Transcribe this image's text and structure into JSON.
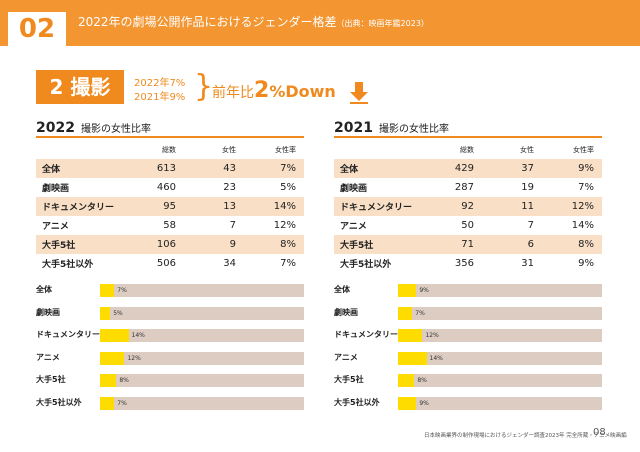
{
  "header": {
    "number": "02",
    "title": "2022年の劇場公開作品におけるジェンダー格差",
    "source": "（出典：映画年鑑2023）"
  },
  "summary": {
    "badge": "2 撮影",
    "year_line_2022": "2022年7%",
    "year_line_2021": "2021年9%",
    "brace": "}",
    "prefix": "前年比",
    "value": "2",
    "unit": "%",
    "direction": "Down"
  },
  "tables": [
    {
      "year": "2022",
      "subtitle": "撮影の女性比率",
      "columns": [
        "",
        "総数",
        "女性",
        "女性率"
      ],
      "rows": [
        {
          "label": "全体",
          "total": "613",
          "female": "43",
          "rate": "7%"
        },
        {
          "label": "劇映画",
          "total": "460",
          "female": "23",
          "rate": "5%"
        },
        {
          "label": "ドキュメンタリー",
          "total": "95",
          "female": "13",
          "rate": "14%"
        },
        {
          "label": "アニメ",
          "total": "58",
          "female": "7",
          "rate": "12%"
        },
        {
          "label": "大手5社",
          "total": "106",
          "female": "9",
          "rate": "8%"
        },
        {
          "label": "大手5社以外",
          "total": "506",
          "female": "34",
          "rate": "7%"
        }
      ]
    },
    {
      "year": "2021",
      "subtitle": "撮影の女性比率",
      "columns": [
        "",
        "総数",
        "女性",
        "女性率"
      ],
      "rows": [
        {
          "label": "全体",
          "total": "429",
          "female": "37",
          "rate": "9%"
        },
        {
          "label": "劇映画",
          "total": "287",
          "female": "19",
          "rate": "7%"
        },
        {
          "label": "ドキュメンタリー",
          "total": "92",
          "female": "11",
          "rate": "12%"
        },
        {
          "label": "アニメ",
          "total": "50",
          "female": "7",
          "rate": "14%"
        },
        {
          "label": "大手5社",
          "total": "71",
          "female": "6",
          "rate": "8%"
        },
        {
          "label": "大手5社以外",
          "total": "356",
          "female": "31",
          "rate": "9%"
        }
      ]
    }
  ],
  "chart_data": [
    {
      "type": "bar",
      "title": "",
      "categories": [
        "全体",
        "劇映画",
        "ドキュメンタリー",
        "アニメ",
        "大手5社",
        "大手5社以外"
      ],
      "values": [
        7,
        5,
        14,
        12,
        8,
        7
      ],
      "value_labels": [
        "7%",
        "5%",
        "14%",
        "12%",
        "8%",
        "7%"
      ],
      "ylim": [
        0,
        100
      ],
      "orientation": "horizontal"
    },
    {
      "type": "bar",
      "title": "",
      "categories": [
        "全体",
        "劇映画",
        "ドキュメンタリー",
        "アニメ",
        "大手5社",
        "大手5社以外"
      ],
      "values": [
        9,
        7,
        12,
        14,
        8,
        9
      ],
      "value_labels": [
        "9%",
        "7%",
        "12%",
        "14%",
        "8%",
        "9%"
      ],
      "ylim": [
        0,
        100
      ],
      "orientation": "horizontal"
    }
  ],
  "footer": {
    "text": "日本映画業界の制作現場におけるジェンダー調査2023年 完全所蔵・アニメ映画編",
    "page": "08"
  },
  "colors": {
    "accent": "#f08a1e",
    "header_bg": "#f39530",
    "row_alt": "#f8dfc6",
    "bar_fill": "#ffdc00",
    "bar_track": "#dcccc2"
  },
  "icons": {
    "down": "down-arrow-icon"
  }
}
